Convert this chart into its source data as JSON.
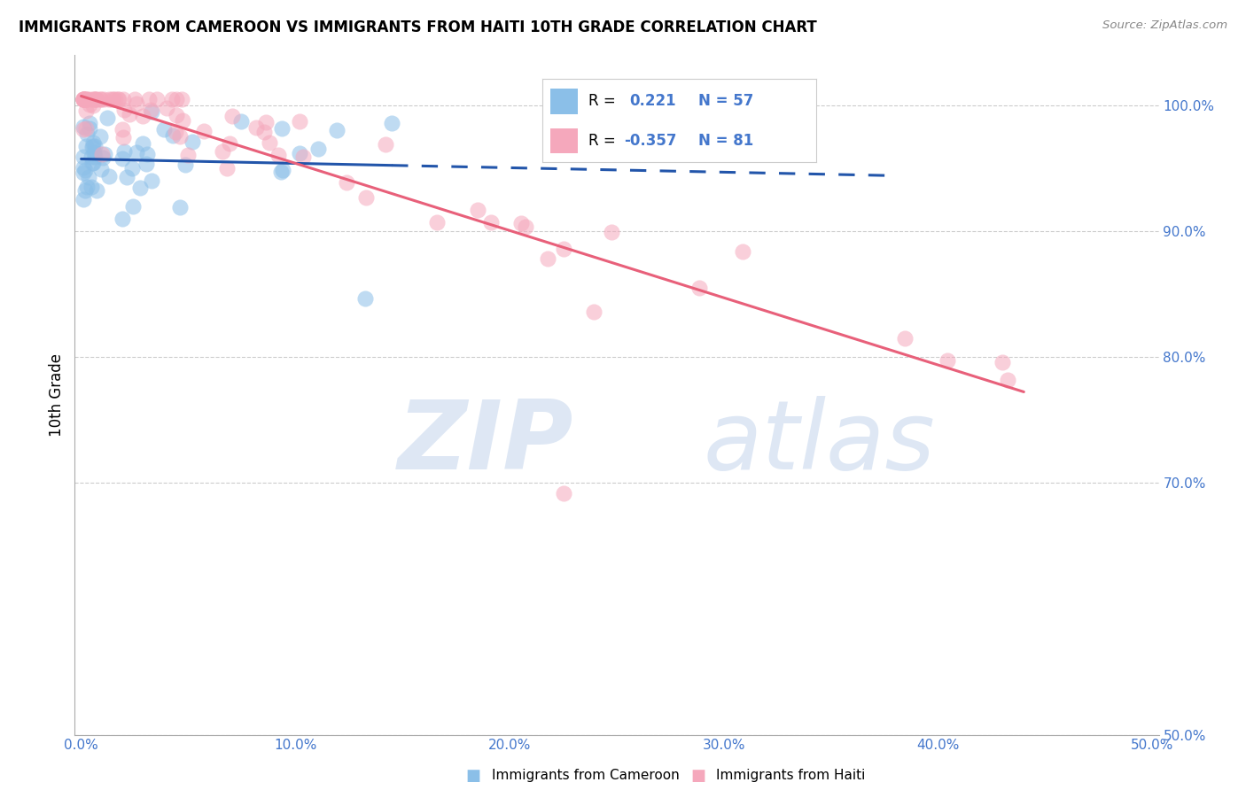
{
  "title": "IMMIGRANTS FROM CAMEROON VS IMMIGRANTS FROM HAITI 10TH GRADE CORRELATION CHART",
  "source": "Source: ZipAtlas.com",
  "ylabel": "10th Grade",
  "cameroon_color": "#8BBFE8",
  "haiti_color": "#F5A8BC",
  "trendline_cameroon_color": "#2255AA",
  "trendline_haiti_color": "#E8607A",
  "xlim": [
    -0.003,
    0.503
  ],
  "ylim": [
    0.5,
    1.04
  ],
  "yticks": [
    0.5,
    0.7,
    0.8,
    0.9,
    1.0
  ],
  "ytick_labels": [
    "50.0%",
    "70.0%",
    "80.0%",
    "90.0%",
    "100.0%"
  ],
  "xticks": [
    0.0,
    0.1,
    0.2,
    0.3,
    0.4,
    0.5
  ],
  "xtick_labels": [
    "0.0%",
    "10.0%",
    "20.0%",
    "30.0%",
    "40.0%",
    "50.0%"
  ],
  "legend_r1": "R =",
  "legend_v1": "0.221",
  "legend_n1": "N = 57",
  "legend_r2": "R =",
  "legend_v2": "-0.357",
  "legend_n2": "N = 81",
  "bottom_label1": "Immigrants from Cameroon",
  "bottom_label2": "Immigrants from Haiti",
  "watermark_zip": "ZIP",
  "watermark_atlas": "atlas",
  "title_fontsize": 12,
  "axis_label_color": "#4477CC",
  "tick_color": "#4477CC"
}
